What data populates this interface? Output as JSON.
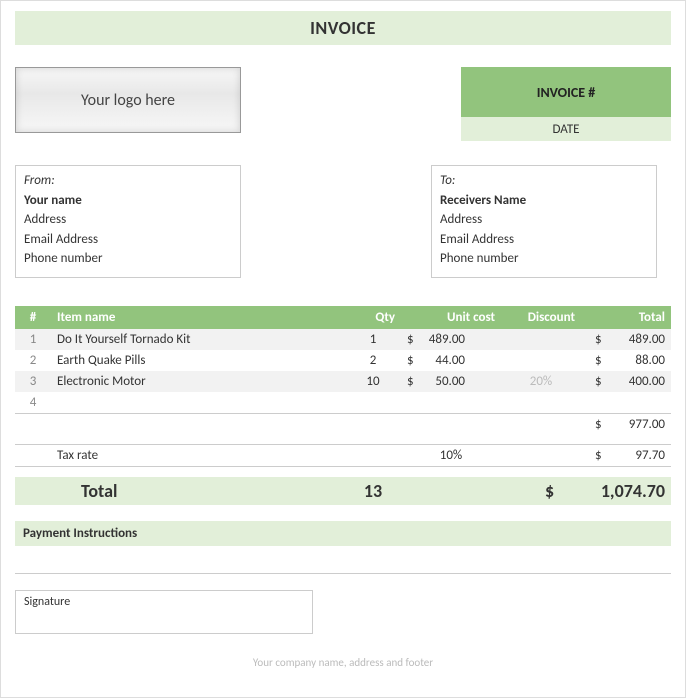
{
  "colors": {
    "header_green": "#92c47d",
    "light_green": "#e2efd9",
    "row_alt": "#f2f2f2",
    "border": "#cccccc",
    "muted_text": "#bbbbbb"
  },
  "title": "INVOICE",
  "logo_placeholder": "Your logo here",
  "invoice_meta": {
    "number_label": "INVOICE #",
    "date_label": "DATE"
  },
  "from": {
    "label": "From:",
    "name": "Your name",
    "address": "Address",
    "email": "Email Address",
    "phone": "Phone number"
  },
  "to": {
    "label": "To:",
    "name": "Receivers Name",
    "address": "Address",
    "email": "Email Address",
    "phone": "Phone number"
  },
  "columns": {
    "num": "#",
    "item": "Item name",
    "qty": "Qty",
    "unit": "Unit cost",
    "discount": "Discount",
    "total": "Total"
  },
  "currency": "$",
  "items": [
    {
      "num": "1",
      "name": "Do It Yourself Tornado Kit",
      "qty": "1",
      "unit": "489.00",
      "discount": "",
      "total": "489.00"
    },
    {
      "num": "2",
      "name": "Earth Quake Pills",
      "qty": "2",
      "unit": "44.00",
      "discount": "",
      "total": "88.00"
    },
    {
      "num": "3",
      "name": "Electronic Motor",
      "qty": "10",
      "unit": "50.00",
      "discount": "20%",
      "total": "400.00"
    },
    {
      "num": "4",
      "name": "",
      "qty": "",
      "unit": "",
      "discount": "",
      "total": ""
    }
  ],
  "subtotal": "977.00",
  "tax": {
    "label": "Tax rate",
    "rate": "10%",
    "amount": "97.70"
  },
  "grand": {
    "label": "Total",
    "qty": "13",
    "amount": "1,074.70"
  },
  "payment_label": "Payment Instructions",
  "signature_label": "Signature",
  "footer": "Your company name, address and footer"
}
